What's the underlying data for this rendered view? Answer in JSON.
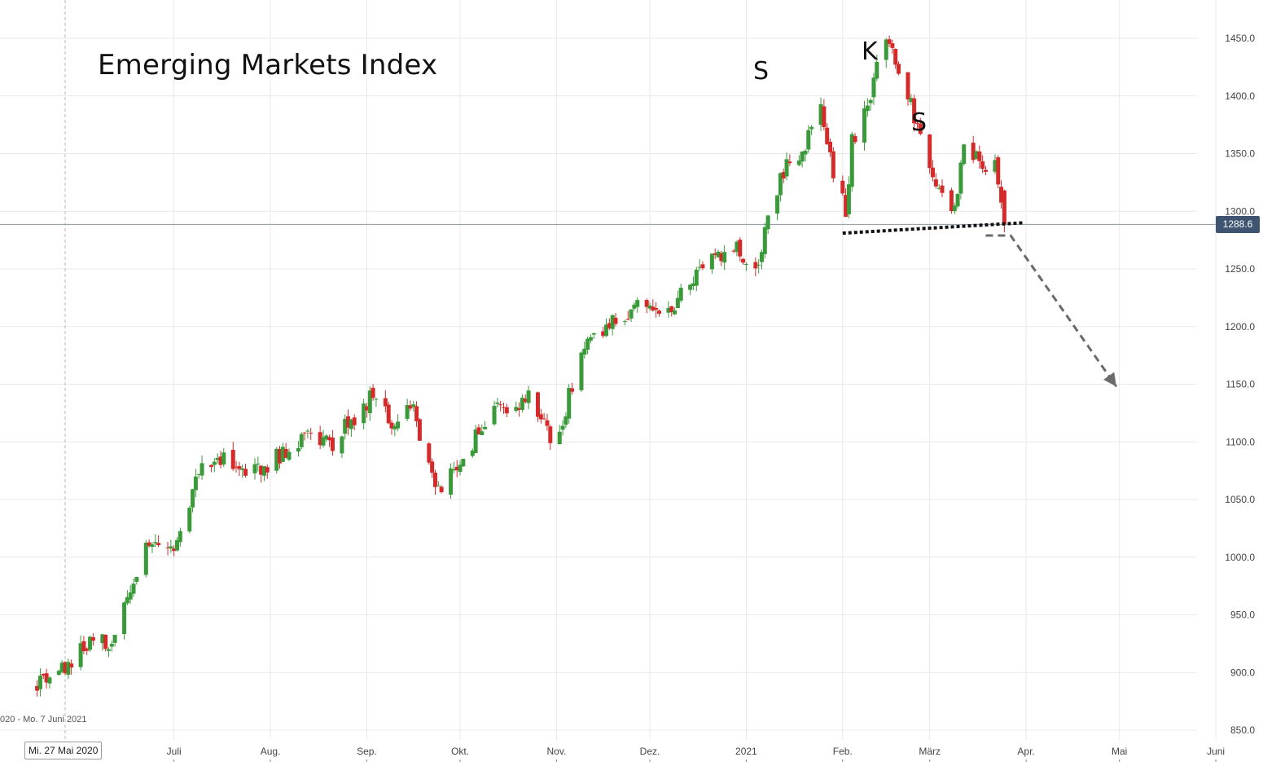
{
  "chart_data": {
    "type": "candlestick",
    "title": "Emerging Markets Index",
    "y_axis": {
      "position": "right",
      "ylim": [
        850,
        1455
      ],
      "ticks": [
        "850.0",
        "900.0",
        "950.0",
        "1000.0",
        "1050.0",
        "1100.0",
        "1150.0",
        "1200.0",
        "1250.0",
        "1300.0",
        "1350.0",
        "1400.0",
        "1450.0"
      ]
    },
    "x_axis": {
      "months": [
        {
          "label": "Juli",
          "date": "2020-07-01"
        },
        {
          "label": "Aug.",
          "date": "2020-08-01"
        },
        {
          "label": "Sep.",
          "date": "2020-09-01"
        },
        {
          "label": "Okt.",
          "date": "2020-10-01"
        },
        {
          "label": "Nov.",
          "date": "2020-11-01"
        },
        {
          "label": "Dez.",
          "date": "2020-12-01"
        },
        {
          "label": "2021",
          "date": "2021-01-01"
        },
        {
          "label": "Feb.",
          "date": "2021-02-01"
        },
        {
          "label": "März",
          "date": "2021-03-01"
        },
        {
          "label": "Apr.",
          "date": "2021-04-01"
        },
        {
          "label": "Mai",
          "date": "2021-05-01"
        },
        {
          "label": "Juni",
          "date": "2021-06-01"
        }
      ],
      "range_text": "020 - Mo. 7 Juni 2021",
      "crosshair_date_label": "Mi. 27 Mai 2020"
    },
    "last_price": "1288.6",
    "series": [
      {
        "points": [
          [
            "2020-05-18",
            888
          ],
          [
            "2020-05-27",
            903
          ],
          [
            "2020-06-05",
            930
          ],
          [
            "2020-06-12",
            925
          ],
          [
            "2020-06-19",
            990
          ],
          [
            "2020-06-25",
            1020
          ],
          [
            "2020-07-01",
            1003
          ],
          [
            "2020-07-09",
            1075
          ],
          [
            "2020-07-16",
            1085
          ],
          [
            "2020-07-23",
            1075
          ],
          [
            "2020-07-31",
            1080
          ],
          [
            "2020-08-07",
            1095
          ],
          [
            "2020-08-14",
            1108
          ],
          [
            "2020-08-21",
            1100
          ],
          [
            "2020-08-28",
            1122
          ],
          [
            "2020-09-03",
            1140
          ],
          [
            "2020-09-09",
            1115
          ],
          [
            "2020-09-15",
            1135
          ],
          [
            "2020-09-23",
            1065
          ],
          [
            "2020-09-25",
            1058
          ],
          [
            "2020-10-05",
            1098
          ],
          [
            "2020-10-12",
            1138
          ],
          [
            "2020-10-19",
            1128
          ],
          [
            "2020-10-23",
            1145
          ],
          [
            "2020-10-30",
            1105
          ],
          [
            "2020-11-02",
            1108
          ],
          [
            "2020-11-09",
            1182
          ],
          [
            "2020-11-16",
            1195
          ],
          [
            "2020-11-23",
            1212
          ],
          [
            "2020-11-30",
            1225
          ],
          [
            "2020-12-07",
            1212
          ],
          [
            "2020-12-14",
            1240
          ],
          [
            "2020-12-21",
            1258
          ],
          [
            "2020-12-28",
            1270
          ],
          [
            "2021-01-05",
            1252
          ],
          [
            "2021-01-08",
            1300
          ],
          [
            "2021-01-14",
            1340
          ],
          [
            "2021-01-20",
            1355
          ],
          [
            "2021-01-25",
            1395
          ],
          [
            "2021-01-29",
            1330
          ],
          [
            "2021-02-02",
            1302
          ],
          [
            "2021-02-04",
            1360
          ],
          [
            "2021-02-09",
            1390
          ],
          [
            "2021-02-12",
            1430
          ],
          [
            "2021-02-16",
            1450
          ],
          [
            "2021-02-19",
            1425
          ],
          [
            "2021-02-22",
            1400
          ],
          [
            "2021-02-25",
            1375
          ],
          [
            "2021-03-01",
            1340
          ],
          [
            "2021-03-05",
            1310
          ],
          [
            "2021-03-09",
            1300
          ],
          [
            "2021-03-12",
            1355
          ],
          [
            "2021-03-16",
            1345
          ],
          [
            "2021-03-19",
            1330
          ],
          [
            "2021-03-22",
            1340
          ],
          [
            "2021-03-24",
            1300
          ],
          [
            "2021-03-25",
            1288.6
          ]
        ]
      }
    ],
    "annotations": {
      "labels": [
        "S",
        "K",
        "S"
      ],
      "neckline": {
        "from": [
          "2021-02-01",
          1281
        ],
        "to": [
          "2021-03-31",
          1290
        ]
      },
      "projection": [
        [
          "2021-03-19",
          1279
        ],
        [
          "2021-03-27",
          1279
        ],
        [
          "2021-04-30",
          1148
        ]
      ]
    },
    "colors": {
      "up": "#3a9a3a",
      "down": "#d42a2a",
      "badge": "#3e5471",
      "grid": "#e9e9e9"
    }
  }
}
